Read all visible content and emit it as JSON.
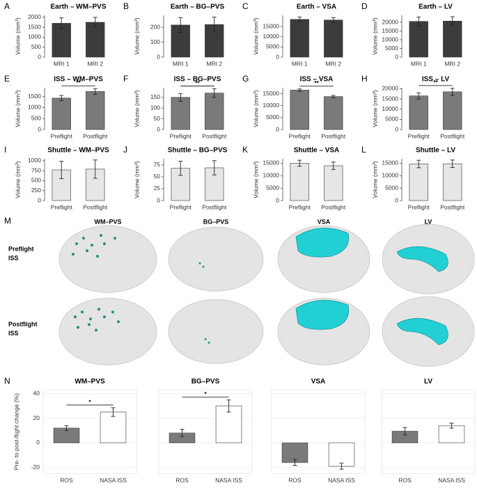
{
  "chart_data": [
    {
      "type": "bar",
      "panel": "A",
      "title": "Earth – WM–PVS",
      "ylabel": "Volume (mm³)",
      "categories": [
        "MRI 1",
        "MRI 2"
      ],
      "values": [
        1700,
        1750
      ],
      "errors": [
        270,
        250
      ],
      "color": "#3c3c3c",
      "ylim": [
        0,
        2100
      ],
      "yticks": [
        0,
        500,
        1000,
        1500,
        2000
      ]
    },
    {
      "type": "bar",
      "panel": "B",
      "title": "Earth – BG–PVS",
      "ylabel": "Volume (mm³)",
      "categories": [
        "MRI 1",
        "MRI 2"
      ],
      "values": [
        215,
        218
      ],
      "errors": [
        50,
        50
      ],
      "color": "#3c3c3c",
      "ylim": [
        0,
        280
      ],
      "yticks": [
        0,
        100,
        200
      ]
    },
    {
      "type": "bar",
      "panel": "C",
      "title": "Earth – VSA",
      "ylabel": "Volume (mm³)",
      "categories": [
        "MRI 1",
        "MRI 2"
      ],
      "values": [
        18500,
        18200
      ],
      "errors": [
        1200,
        1200
      ],
      "color": "#3c3c3c",
      "ylim": [
        0,
        20500
      ],
      "yticks": [
        0,
        5000,
        10000,
        15000
      ]
    },
    {
      "type": "bar",
      "panel": "D",
      "title": "Earth – LV",
      "ylabel": "Volume (mm³)",
      "categories": [
        "MRI 1",
        "MRI 2"
      ],
      "values": [
        20500,
        20700
      ],
      "errors": [
        2500,
        2500
      ],
      "color": "#3c3c3c",
      "ylim": [
        0,
        24000
      ],
      "yticks": [
        0,
        5000,
        10000,
        15000,
        20000
      ]
    },
    {
      "type": "bar",
      "panel": "E",
      "title": "ISS – WM–PVS",
      "ylabel": "Volume (mm³)",
      "categories": [
        "Preflight",
        "Postflight"
      ],
      "values": [
        1430,
        1730
      ],
      "errors": [
        120,
        130
      ],
      "color": "#7a7a7a",
      "ylim": [
        0,
        1900
      ],
      "yticks": [
        0,
        500,
        1000,
        1500
      ],
      "significance": "**"
    },
    {
      "type": "bar",
      "panel": "F",
      "title": "ISS – BG–PVS",
      "ylabel": "Volume (mm³)",
      "categories": [
        "Preflight",
        "Postflight"
      ],
      "values": [
        150,
        170
      ],
      "errors": [
        18,
        20
      ],
      "color": "#7a7a7a",
      "ylim": [
        0,
        195
      ],
      "yticks": [
        0,
        50,
        100,
        150
      ],
      "significance": "**"
    },
    {
      "type": "bar",
      "panel": "G",
      "title": "ISS – VSA",
      "ylabel": "Volume (mm³)",
      "categories": [
        "Preflight",
        "Postflight"
      ],
      "values": [
        16500,
        13800
      ],
      "errors": [
        500,
        500
      ],
      "color": "#7a7a7a",
      "ylim": [
        0,
        17500
      ],
      "yticks": [
        0,
        5000,
        10000,
        15000
      ],
      "significance": "**"
    },
    {
      "type": "bar",
      "panel": "H",
      "title": "ISS – LV",
      "ylabel": "Volume (mm³)",
      "categories": [
        "Preflight",
        "Postflight"
      ],
      "values": [
        16500,
        18500
      ],
      "errors": [
        1500,
        1700
      ],
      "color": "#7a7a7a",
      "ylim": [
        0,
        20500
      ],
      "yticks": [
        0,
        5000,
        10000,
        15000,
        20000
      ],
      "significance": "**"
    },
    {
      "type": "bar",
      "panel": "I",
      "title": "Shuttle – WM–PVS",
      "ylabel": "Volume (mm³)",
      "categories": [
        "Preflight",
        "Postflight"
      ],
      "values": [
        770,
        790
      ],
      "errors": [
        220,
        230
      ],
      "color": "#e6e6e6",
      "ylim": [
        0,
        1050
      ],
      "yticks": [
        0,
        250,
        500,
        750,
        1000
      ]
    },
    {
      "type": "bar",
      "panel": "J",
      "title": "Shuttle – BG–PVS",
      "ylabel": "Volume (mm³)",
      "categories": [
        "Preflight",
        "Postflight"
      ],
      "values": [
        68,
        69
      ],
      "errors": [
        15,
        15
      ],
      "color": "#e6e6e6",
      "ylim": [
        0,
        88
      ],
      "yticks": [
        0,
        25,
        50,
        75
      ]
    },
    {
      "type": "bar",
      "panel": "K",
      "title": "Shuttle – VSA",
      "ylabel": "Volume (mm³)",
      "categories": [
        "Preflight",
        "Postflight"
      ],
      "values": [
        15000,
        14000
      ],
      "errors": [
        1200,
        1500
      ],
      "color": "#e6e6e6",
      "ylim": [
        0,
        16800
      ],
      "yticks": [
        0,
        5000,
        10000,
        15000
      ]
    },
    {
      "type": "bar",
      "panel": "L",
      "title": "Shuttle – LV",
      "ylabel": "Volume (mm³)",
      "categories": [
        "Preflight",
        "Postflight"
      ],
      "values": [
        14700,
        14800
      ],
      "errors": [
        1500,
        1500
      ],
      "color": "#e6e6e6",
      "ylim": [
        0,
        16800
      ],
      "yticks": [
        0,
        5000,
        10000,
        15000
      ]
    },
    {
      "type": "faceted-bar",
      "panel": "N",
      "ylabel": "Pre- to post-flight change (%)",
      "categories": [
        "ROS",
        "NASA ISS"
      ],
      "colors": [
        "#7a7a7a",
        "#ffffff"
      ],
      "ylim": [
        -25,
        43
      ],
      "yticks": [
        -20,
        0,
        20,
        40
      ],
      "grid": true,
      "facets": [
        {
          "title": "WM–PVS",
          "values": [
            12,
            25
          ],
          "errors": [
            2,
            3.5
          ],
          "significance": "*"
        },
        {
          "title": "BG–PVS",
          "values": [
            8,
            30
          ],
          "errors": [
            3,
            5
          ],
          "significance": "*"
        },
        {
          "title": "VSA",
          "values": [
            -16,
            -19
          ],
          "errors": [
            2.5,
            2.5
          ]
        },
        {
          "title": "LV",
          "values": [
            9.5,
            14
          ],
          "errors": [
            3,
            2
          ]
        }
      ]
    }
  ],
  "panel_m": {
    "panel": "M",
    "columns": [
      "WM–PVS",
      "BG–PVS",
      "VSA",
      "LV"
    ],
    "rows": [
      [
        "Preflight",
        "ISS"
      ],
      [
        "Postflight",
        "ISS"
      ]
    ]
  }
}
